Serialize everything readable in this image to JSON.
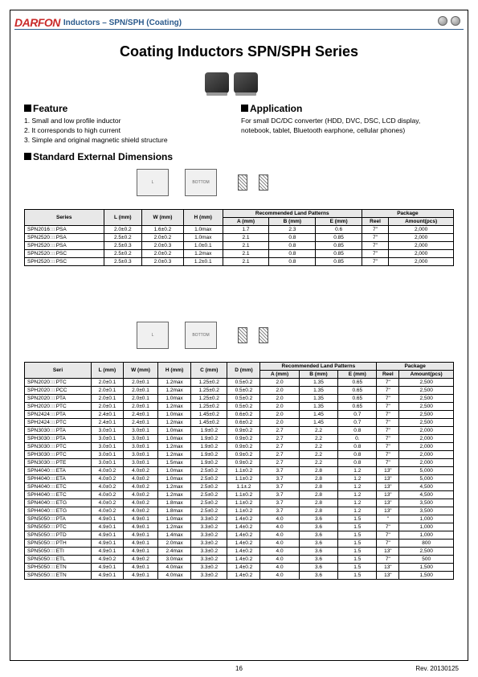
{
  "header": {
    "logo": "DARFON",
    "title": "Inductors – SPN/SPH (Coating)"
  },
  "main_title": "Coating Inductors SPN/SPH Series",
  "feature": {
    "heading": "Feature",
    "items": [
      "1. Small and low profile inductor",
      "2. It corresponds to high current",
      "3. Simple and original magnetic shield structure"
    ]
  },
  "application": {
    "heading": "Application",
    "text": "For small DC/DC converter (HDD, DVC, DSC, LCD display, notebook, tablet, Bluetooth earphone, cellular phones)"
  },
  "std_heading": "Standard External Dimensions",
  "table1": {
    "headers": {
      "series": "Series",
      "l": "L\n(mm)",
      "w": "W\n(mm)",
      "h": "H\n(mm)",
      "rec": "Recommended Land Patterns",
      "a": "A\n(mm)",
      "b": "B\n(mm)",
      "e": "E\n(mm)",
      "pkg": "Package",
      "reel": "Reel",
      "amt": "Amount(pcs)"
    },
    "rows": [
      {
        "s": "SPN2016",
        "sfx": "PSA",
        "l": "2.0±0.2",
        "w": "1.6±0.2",
        "h": "1.0max",
        "a": "1.7",
        "b": "2.3",
        "e": "0.6",
        "r": "7\"",
        "am": "2,000"
      },
      {
        "s": "SPN2520",
        "sfx": "PSA",
        "l": "2.5±0.2",
        "w": "2.0±0.2",
        "h": "1.0max",
        "a": "2.1",
        "b": "0.8",
        "e": "0.85",
        "r": "7\"",
        "am": "2,000"
      },
      {
        "s": "SPH2520",
        "sfx": "PSA",
        "l": "2.5±0.3",
        "w": "2.0±0.3",
        "h": "1.0±0.1",
        "a": "2.1",
        "b": "0.8",
        "e": "0.85",
        "r": "7\"",
        "am": "2,000"
      },
      {
        "s": "SPN2520",
        "sfx": "PSC",
        "l": "2.5±0.2",
        "w": "2.0±0.2",
        "h": "1.2max",
        "a": "2.1",
        "b": "0.8",
        "e": "0.85",
        "r": "7\"",
        "am": "2,000"
      },
      {
        "s": "SPH2520",
        "sfx": "PSC",
        "l": "2.5±0.3",
        "w": "2.0±0.3",
        "h": "1.2±0.1",
        "a": "2.1",
        "b": "0.8",
        "e": "0.85",
        "r": "7\"",
        "am": "2,000"
      }
    ]
  },
  "table2": {
    "headers": {
      "seri": "Seri",
      "l": "L\n(mm)",
      "w": "W\n(mm)",
      "h": "H\n(mm)",
      "c": "C\n(mm)",
      "d": "D\n(mm)",
      "rec": "Recommended Land\nPatterns",
      "a": "A\n(mm)",
      "b": "B\n(mm)",
      "e": "E\n(mm)",
      "pkg": "Package",
      "reel": "Reel",
      "amt": "Amount(pcs)"
    },
    "rows": [
      {
        "s": "SPN2020",
        "sfx": "PTC",
        "l": "2.0±0.1",
        "w": "2.0±0.1",
        "h": "1.2max",
        "c": "1.25±0.2",
        "d": "0.5±0.2",
        "a": "2.0",
        "b": "1.35",
        "e": "0.65",
        "r": "7\"",
        "am": "2,500"
      },
      {
        "s": "SPH2020",
        "sfx": "PCC",
        "l": "2.0±0.1",
        "w": "2.0±0.1",
        "h": "1.2max",
        "c": "1.25±0.2",
        "d": "0.5±0.2",
        "a": "2.0",
        "b": "1.35",
        "e": "0.65",
        "r": "7\"",
        "am": "2,500"
      },
      {
        "s": "SPN2020",
        "sfx": "PTA",
        "l": "2.0±0.1",
        "w": "2.0±0.1",
        "h": "1.0max",
        "c": "1.25±0.2",
        "d": "0.5±0.2",
        "a": "2.0",
        "b": "1.35",
        "e": "0.65",
        "r": "7\"",
        "am": "2,500"
      },
      {
        "s": "SPH2020",
        "sfx": "PTC",
        "l": "2.0±0.1",
        "w": "2.0±0.1",
        "h": "1.2max",
        "c": "1.25±0.2",
        "d": "0.5±0.2",
        "a": "2.0",
        "b": "1.35",
        "e": "0.65",
        "r": "7\"",
        "am": "2,500"
      },
      {
        "s": "SPN2424",
        "sfx": "PTA",
        "l": "2.4±0.1",
        "w": "2.4±0.1",
        "h": "1.0max",
        "c": "1.45±0.2",
        "d": "0.6±0.2",
        "a": "2.0",
        "b": "1.45",
        "e": "0.7",
        "r": "7\"",
        "am": "2,500"
      },
      {
        "s": "SPH2424",
        "sfx": "PTC",
        "l": "2.4±0.1",
        "w": "2.4±0.1",
        "h": "1.2max",
        "c": "1.45±0.2",
        "d": "0.6±0.2",
        "a": "2.0",
        "b": "1.45",
        "e": "0.7",
        "r": "7\"",
        "am": "2,500"
      },
      {
        "s": "SPN3030",
        "sfx": "PTA",
        "l": "3.0±0.1",
        "w": "3.0±0.1",
        "h": "1.0max",
        "c": "1.9±0.2",
        "d": "0.9±0.2",
        "a": "2.7",
        "b": "2.2",
        "e": "0.8",
        "r": "7\"",
        "am": "2,000"
      },
      {
        "s": "SPH3030",
        "sfx": "PTA",
        "l": "3.0±0.1",
        "w": "3.0±0.1",
        "h": "1.0max",
        "c": "1.9±0.2",
        "d": "0.9±0.2",
        "a": "2.7",
        "b": "2.2",
        "e": "0.",
        "r": "7\"",
        "am": "2,000"
      },
      {
        "s": "SPN3030",
        "sfx": "PTC",
        "l": "3.0±0.1",
        "w": "3.0±0.1",
        "h": "1.2max",
        "c": "1.9±0.2",
        "d": "0.9±0.2",
        "a": "2.7",
        "b": "2.2",
        "e": "0.8",
        "r": "7\"",
        "am": "2,000"
      },
      {
        "s": "SPH3030",
        "sfx": "PTC",
        "l": "3.0±0.1",
        "w": "3.0±0.1",
        "h": "1.2max",
        "c": "1.9±0.2",
        "d": "0.9±0.2",
        "a": "2.7",
        "b": "2.2",
        "e": "0.8",
        "r": "7\"",
        "am": "2,000"
      },
      {
        "s": "SPN3030",
        "sfx": "PTE",
        "l": "3.0±0.1",
        "w": "3.0±0.1",
        "h": "1.5max",
        "c": "1.9±0.2",
        "d": "0.9±0.2",
        "a": "2.7",
        "b": "2.2",
        "e": "0.8",
        "r": "7\"",
        "am": "2,000"
      },
      {
        "s": "SPN4040",
        "sfx": "ETA",
        "l": "4.0±0.2",
        "w": "4.0±0.2",
        "h": "1.0max",
        "c": "2.5±0.2",
        "d": "1.1±0.2",
        "a": "3.7",
        "b": "2.8",
        "e": "1.2",
        "r": "13\"",
        "am": "5,000"
      },
      {
        "s": "SPH4040",
        "sfx": "ETA",
        "l": "4.0±0.2",
        "w": "4.0±0.2",
        "h": "1.0max",
        "c": "2.5±0.2",
        "d": "1.1±0.2",
        "a": "3.7",
        "b": "2.8",
        "e": "1.2",
        "r": "13\"",
        "am": "5,000"
      },
      {
        "s": "SPN4040",
        "sfx": "ETC",
        "l": "4.0±0.2",
        "w": "4.0±0.2",
        "h": "1.2max",
        "c": "2.5±0.2",
        "d": "1.1±.2",
        "a": "3.7",
        "b": "2.8",
        "e": "1.2",
        "r": "13\"",
        "am": "4,500"
      },
      {
        "s": "SPH4040",
        "sfx": "ETC",
        "l": "4.0±0.2",
        "w": "4.0±0.2",
        "h": "1.2max",
        "c": "2.5±0.2",
        "d": "1.1±0.2",
        "a": "3.7",
        "b": "2.8",
        "e": "1.2",
        "r": "13\"",
        "am": "4,500"
      },
      {
        "s": "SPN4040",
        "sfx": "ETG",
        "l": "4.0±0.2",
        "w": "4.0±0.2",
        "h": "1.8max",
        "c": "2.5±0.2",
        "d": "1.1±0.2",
        "a": "3.7",
        "b": "2.8",
        "e": "1.2",
        "r": "13\"",
        "am": "3,500"
      },
      {
        "s": "SPH4040",
        "sfx": "ETG",
        "l": "4.0±0.2",
        "w": "4.0±0.2",
        "h": "1.8max",
        "c": "2.5±0.2",
        "d": "1.1±0.2",
        "a": "3.7",
        "b": "2.8",
        "e": "1.2",
        "r": "13\"",
        "am": "3,500"
      },
      {
        "s": "SPN5050",
        "sfx": "PTA",
        "l": "4.9±0.1",
        "w": "4.9±0.1",
        "h": "1.0max",
        "c": "3.3±0.2",
        "d": "1.4±0.2",
        "a": "4.0",
        "b": "3.6",
        "e": "1.5",
        "r": "\"",
        "am": "1,000"
      },
      {
        "s": "SPN5050",
        "sfx": "PTC",
        "l": "4.9±0.1",
        "w": "4.9±0.1",
        "h": "1.2max",
        "c": "3.3±0.2",
        "d": "1.4±0.2",
        "a": "4.0",
        "b": "3.6",
        "e": "1.5",
        "r": "7\"",
        "am": "1,000"
      },
      {
        "s": "SPN5050",
        "sfx": "PTD",
        "l": "4.9±0.1",
        "w": "4.9±0.1",
        "h": "1.4max",
        "c": "3.3±0.2",
        "d": "1.4±0.2",
        "a": "4.0",
        "b": "3.6",
        "e": "1.5",
        "r": "7\"",
        "am": "1,000"
      },
      {
        "s": "SPN5050",
        "sfx": "PTH",
        "l": "4.9±0.1",
        "w": "4.9±0.1",
        "h": "2.0max",
        "c": "3.3±0.2",
        "d": "1.4±0.2",
        "a": "4.0",
        "b": "3.6",
        "e": "1.5",
        "r": "7\"",
        "am": "800"
      },
      {
        "s": "SPN5050",
        "sfx": "ETI",
        "l": "4.9±0.1",
        "w": "4.9±0.1",
        "h": "2.4max",
        "c": "3.3±0.2",
        "d": "1.4±0.2",
        "a": "4.0",
        "b": "3.6",
        "e": "1.5",
        "r": "13\"",
        "am": "2,500"
      },
      {
        "s": "SPN5050",
        "sfx": "ETL",
        "l": "4.9±0.2",
        "w": "4.9±0.2",
        "h": "3.0max",
        "c": "3.3±0.2",
        "d": "1.4±0.2",
        "a": "4.0",
        "b": "3.6",
        "e": "1.5",
        "r": "7\"",
        "am": "500"
      },
      {
        "s": "SPH5050",
        "sfx": "ETN",
        "l": "4.9±0.1",
        "w": "4.9±0.1",
        "h": "4.0max",
        "c": "3.3±0.2",
        "d": "1.4±0.2",
        "a": "4.0",
        "b": "3.6",
        "e": "1.5",
        "r": "13\"",
        "am": "1,500"
      },
      {
        "s": "SPN5050",
        "sfx": "ETN",
        "l": "4.9±0.1",
        "w": "4.9±0.1",
        "h": "4.0max",
        "c": "3.3±0.2",
        "d": "1.4±0.2",
        "a": "4.0",
        "b": "3.6",
        "e": "1.5",
        "r": "13\"",
        "am": "1,500"
      }
    ]
  },
  "footer": {
    "page": "16",
    "rev": "Rev. 20130125"
  },
  "style": {
    "logo_color": "#c92a2a",
    "title_color": "#2b5a8c",
    "border_color": "#000000",
    "th_bg": "#e8e8e8",
    "font_small": 6.5,
    "font_body": 8.5
  }
}
